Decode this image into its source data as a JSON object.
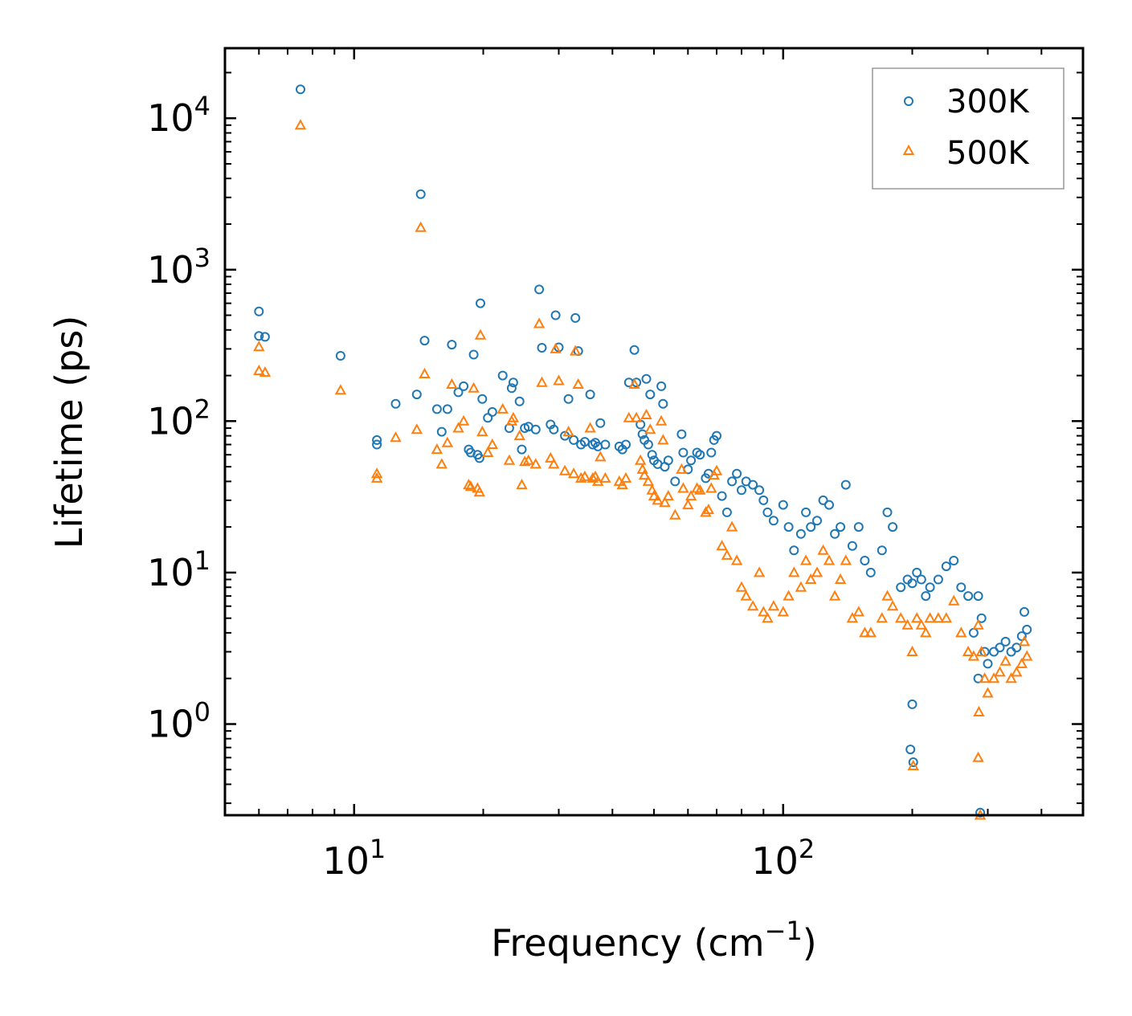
{
  "chart_data": {
    "type": "scatter",
    "xscale": "log",
    "yscale": "log",
    "xlabel": "Frequency (cm",
    "xlabel_sup": "−1",
    "xlabel_close": ")",
    "ylabel": "Lifetime (ps)",
    "xlim": [
      5,
      500
    ],
    "ylim": [
      0.25,
      29000
    ],
    "x_ticks": [
      {
        "base": "10",
        "exp": "1",
        "value": 10
      },
      {
        "base": "10",
        "exp": "2",
        "value": 100
      }
    ],
    "y_ticks": [
      {
        "base": "10",
        "exp": "0",
        "value": 1
      },
      {
        "base": "10",
        "exp": "1",
        "value": 10
      },
      {
        "base": "10",
        "exp": "2",
        "value": 100
      },
      {
        "base": "10",
        "exp": "3",
        "value": 1000
      },
      {
        "base": "10",
        "exp": "4",
        "value": 10000
      }
    ],
    "legend_position": "top-right",
    "series": [
      {
        "name": "300K",
        "marker": "circle",
        "color": "#1f77b4",
        "points": [
          [
            6.0,
            530
          ],
          [
            6.0,
            365
          ],
          [
            6.2,
            360
          ],
          [
            7.5,
            15500
          ],
          [
            9.3,
            270
          ],
          [
            11.3,
            75
          ],
          [
            11.3,
            70
          ],
          [
            12.5,
            130
          ],
          [
            14.0,
            150
          ],
          [
            14.3,
            3150
          ],
          [
            14.6,
            340
          ],
          [
            15.6,
            120
          ],
          [
            16.0,
            85
          ],
          [
            16.5,
            120
          ],
          [
            16.9,
            320
          ],
          [
            17.5,
            155
          ],
          [
            18.0,
            170
          ],
          [
            18.5,
            65
          ],
          [
            18.7,
            62
          ],
          [
            19.0,
            275
          ],
          [
            19.4,
            60
          ],
          [
            19.6,
            57
          ],
          [
            19.7,
            600
          ],
          [
            19.9,
            140
          ],
          [
            20.5,
            105
          ],
          [
            21.0,
            115
          ],
          [
            22.2,
            200
          ],
          [
            23.0,
            90
          ],
          [
            23.3,
            165
          ],
          [
            23.5,
            180
          ],
          [
            24.3,
            135
          ],
          [
            24.6,
            65
          ],
          [
            25.0,
            90
          ],
          [
            25.5,
            92
          ],
          [
            26.5,
            88
          ],
          [
            27.0,
            740
          ],
          [
            27.4,
            305
          ],
          [
            28.7,
            95
          ],
          [
            29.2,
            88
          ],
          [
            29.5,
            500
          ],
          [
            30.0,
            307
          ],
          [
            31.0,
            80
          ],
          [
            31.6,
            140
          ],
          [
            32.5,
            75
          ],
          [
            32.8,
            480
          ],
          [
            33.3,
            290
          ],
          [
            33.8,
            70
          ],
          [
            34.5,
            73
          ],
          [
            35.5,
            150
          ],
          [
            36.0,
            70
          ],
          [
            36.5,
            72
          ],
          [
            37.0,
            68
          ],
          [
            37.5,
            97
          ],
          [
            38.5,
            70
          ],
          [
            41.5,
            68
          ],
          [
            42.2,
            65
          ],
          [
            43.0,
            70
          ],
          [
            43.7,
            180
          ],
          [
            45.0,
            295
          ],
          [
            45.5,
            180
          ],
          [
            46.5,
            95
          ],
          [
            47.0,
            82
          ],
          [
            47.5,
            75
          ],
          [
            48.0,
            190
          ],
          [
            48.5,
            70
          ],
          [
            49.0,
            150
          ],
          [
            49.5,
            60
          ],
          [
            50.0,
            55
          ],
          [
            51.0,
            52
          ],
          [
            52.0,
            170
          ],
          [
            52.5,
            130
          ],
          [
            53.0,
            50
          ],
          [
            54.0,
            55
          ],
          [
            56.0,
            40
          ],
          [
            58.0,
            82
          ],
          [
            58.5,
            62
          ],
          [
            60.0,
            48
          ],
          [
            61.0,
            55
          ],
          [
            63.0,
            62
          ],
          [
            64.0,
            60
          ],
          [
            66.0,
            42
          ],
          [
            67.0,
            45
          ],
          [
            68.0,
            62
          ],
          [
            69.0,
            75
          ],
          [
            70.0,
            80
          ],
          [
            72.0,
            32
          ],
          [
            74.0,
            25
          ],
          [
            76.0,
            40
          ],
          [
            78.0,
            45
          ],
          [
            80.0,
            35
          ],
          [
            82.0,
            40
          ],
          [
            85.0,
            38
          ],
          [
            88.0,
            35
          ],
          [
            90.0,
            30
          ],
          [
            92.0,
            25
          ],
          [
            95.0,
            22
          ],
          [
            100.0,
            28
          ],
          [
            103.0,
            20
          ],
          [
            106.0,
            14
          ],
          [
            110.0,
            18
          ],
          [
            113.0,
            25
          ],
          [
            116.0,
            20
          ],
          [
            120.0,
            22
          ],
          [
            124.0,
            30
          ],
          [
            128.0,
            28
          ],
          [
            132.0,
            18
          ],
          [
            136.0,
            20
          ],
          [
            140.0,
            38
          ],
          [
            145.0,
            15
          ],
          [
            150.0,
            20
          ],
          [
            155.0,
            12
          ],
          [
            160.0,
            10
          ],
          [
            170.0,
            14
          ],
          [
            175.0,
            25
          ],
          [
            180.0,
            20
          ],
          [
            188.0,
            8
          ],
          [
            195.0,
            9
          ],
          [
            200.0,
            8.5
          ],
          [
            205.0,
            10
          ],
          [
            210.0,
            9
          ],
          [
            215.0,
            7
          ],
          [
            220.0,
            8
          ],
          [
            230.0,
            9
          ],
          [
            240.0,
            11
          ],
          [
            250.0,
            12
          ],
          [
            260.0,
            8
          ],
          [
            270.0,
            7
          ],
          [
            278.0,
            4.0
          ],
          [
            285.0,
            7.0
          ],
          [
            290.0,
            5.0
          ],
          [
            295.0,
            3.0
          ],
          [
            300.0,
            2.5
          ],
          [
            310.0,
            3.0
          ],
          [
            320.0,
            3.2
          ],
          [
            330.0,
            3.5
          ],
          [
            340.0,
            3.0
          ],
          [
            350.0,
            3.2
          ],
          [
            360.0,
            3.8
          ],
          [
            365.0,
            5.5
          ],
          [
            370.0,
            4.2
          ],
          [
            200.0,
            1.35
          ],
          [
            198.0,
            0.68
          ],
          [
            201.0,
            0.56
          ],
          [
            288.0,
            0.26
          ],
          [
            285.0,
            2.0
          ]
        ]
      },
      {
        "name": "500K",
        "marker": "triangle",
        "color": "#ff7f0e",
        "points": [
          [
            6.0,
            310
          ],
          [
            6.0,
            215
          ],
          [
            6.2,
            210
          ],
          [
            7.5,
            9000
          ],
          [
            9.3,
            160
          ],
          [
            11.3,
            45
          ],
          [
            11.3,
            42
          ],
          [
            12.5,
            78
          ],
          [
            14.0,
            88
          ],
          [
            14.3,
            1900
          ],
          [
            14.6,
            205
          ],
          [
            15.6,
            65
          ],
          [
            16.0,
            52
          ],
          [
            16.5,
            72
          ],
          [
            16.9,
            175
          ],
          [
            17.5,
            90
          ],
          [
            18.0,
            100
          ],
          [
            18.5,
            38
          ],
          [
            18.7,
            37
          ],
          [
            19.0,
            165
          ],
          [
            19.4,
            36
          ],
          [
            19.6,
            34
          ],
          [
            19.7,
            370
          ],
          [
            19.9,
            85
          ],
          [
            20.5,
            62
          ],
          [
            21.0,
            70
          ],
          [
            22.2,
            120
          ],
          [
            23.0,
            55
          ],
          [
            23.3,
            100
          ],
          [
            23.5,
            105
          ],
          [
            24.3,
            80
          ],
          [
            24.6,
            38
          ],
          [
            25.0,
            54
          ],
          [
            25.5,
            55
          ],
          [
            26.5,
            52
          ],
          [
            27.0,
            440
          ],
          [
            27.4,
            180
          ],
          [
            28.7,
            57
          ],
          [
            29.2,
            52
          ],
          [
            29.5,
            300
          ],
          [
            30.0,
            185
          ],
          [
            31.0,
            47
          ],
          [
            31.6,
            85
          ],
          [
            32.5,
            45
          ],
          [
            32.8,
            290
          ],
          [
            33.3,
            175
          ],
          [
            33.8,
            42
          ],
          [
            34.5,
            43
          ],
          [
            35.5,
            90
          ],
          [
            36.0,
            42
          ],
          [
            36.5,
            43
          ],
          [
            37.0,
            40
          ],
          [
            37.5,
            58
          ],
          [
            38.5,
            42
          ],
          [
            41.5,
            40
          ],
          [
            42.2,
            38
          ],
          [
            43.0,
            42
          ],
          [
            43.7,
            105
          ],
          [
            45.0,
            175
          ],
          [
            45.5,
            105
          ],
          [
            46.5,
            55
          ],
          [
            47.0,
            48
          ],
          [
            47.5,
            44
          ],
          [
            48.0,
            110
          ],
          [
            48.5,
            40
          ],
          [
            49.0,
            88
          ],
          [
            49.5,
            35
          ],
          [
            50.0,
            32
          ],
          [
            51.0,
            30
          ],
          [
            52.0,
            100
          ],
          [
            52.5,
            75
          ],
          [
            53.0,
            29
          ],
          [
            54.0,
            32
          ],
          [
            56.0,
            24
          ],
          [
            58.0,
            48
          ],
          [
            58.5,
            36
          ],
          [
            60.0,
            28
          ],
          [
            61.0,
            32
          ],
          [
            63.0,
            36
          ],
          [
            64.0,
            35
          ],
          [
            66.0,
            25
          ],
          [
            67.0,
            26
          ],
          [
            68.0,
            36
          ],
          [
            69.0,
            44
          ],
          [
            70.0,
            47
          ],
          [
            72.0,
            15
          ],
          [
            74.0,
            13
          ],
          [
            76.0,
            20
          ],
          [
            78.0,
            12
          ],
          [
            80.0,
            8
          ],
          [
            82.0,
            7
          ],
          [
            85.0,
            6
          ],
          [
            88.0,
            10
          ],
          [
            90.0,
            5.5
          ],
          [
            92.0,
            5
          ],
          [
            95.0,
            6
          ],
          [
            100.0,
            5.5
          ],
          [
            103.0,
            7
          ],
          [
            106.0,
            10
          ],
          [
            110.0,
            8
          ],
          [
            113.0,
            12
          ],
          [
            116.0,
            9
          ],
          [
            120.0,
            10
          ],
          [
            124.0,
            14
          ],
          [
            128.0,
            12
          ],
          [
            132.0,
            7
          ],
          [
            136.0,
            9
          ],
          [
            140.0,
            12
          ],
          [
            145.0,
            5
          ],
          [
            150.0,
            5.5
          ],
          [
            155.0,
            4
          ],
          [
            160.0,
            4
          ],
          [
            170.0,
            5
          ],
          [
            175.0,
            7
          ],
          [
            180.0,
            6
          ],
          [
            188.0,
            5
          ],
          [
            195.0,
            4.5
          ],
          [
            200.0,
            3
          ],
          [
            205.0,
            5
          ],
          [
            210.0,
            4.5
          ],
          [
            215.0,
            4
          ],
          [
            220.0,
            5
          ],
          [
            230.0,
            5
          ],
          [
            240.0,
            5
          ],
          [
            250.0,
            6.5
          ],
          [
            260.0,
            4
          ],
          [
            270.0,
            3
          ],
          [
            278.0,
            2.8
          ],
          [
            285.0,
            4.5
          ],
          [
            290.0,
            3.0
          ],
          [
            295.0,
            2.0
          ],
          [
            300.0,
            1.6
          ],
          [
            310.0,
            2.0
          ],
          [
            320.0,
            2.2
          ],
          [
            330.0,
            2.6
          ],
          [
            340.0,
            2.0
          ],
          [
            350.0,
            2.2
          ],
          [
            360.0,
            2.5
          ],
          [
            365.0,
            3.5
          ],
          [
            370.0,
            2.8
          ],
          [
            201.0,
            0.53
          ],
          [
            288.0,
            0.25
          ],
          [
            285.0,
            0.6
          ],
          [
            286.0,
            1.2
          ]
        ]
      }
    ]
  }
}
